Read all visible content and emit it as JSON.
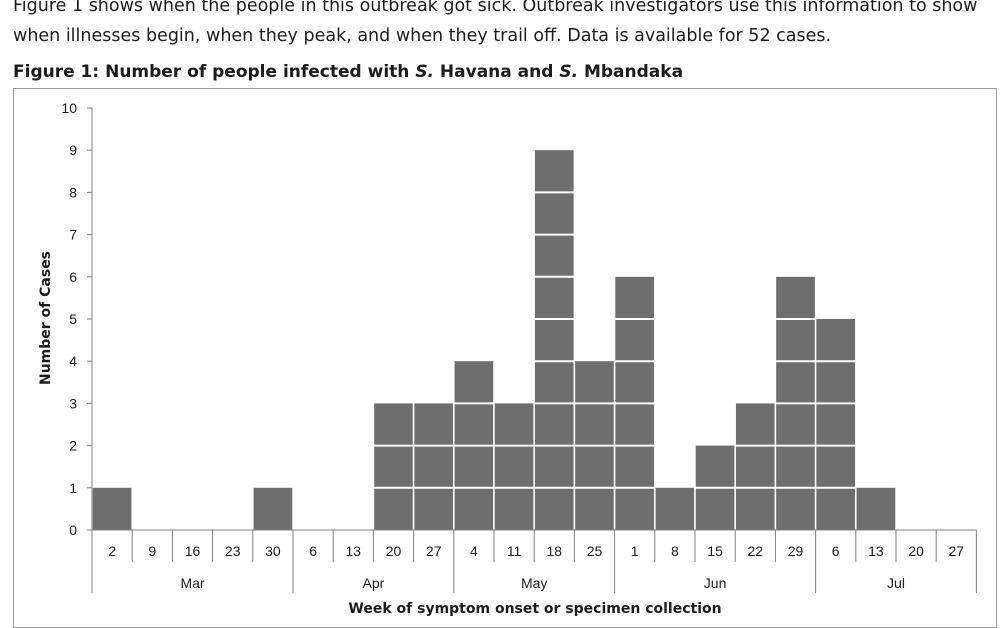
{
  "intro_text": "Figure 1 shows when the people in this outbreak got sick. Outbreak investigators use this information to show when illnesses begin, when they peak, and when they trail off. Data is available for 52 cases.",
  "figure_title": {
    "prefix": "Figure 1: Number of people infected with ",
    "species1": "S.",
    "name1": " Havana and ",
    "species2": "S.",
    "name2": " Mbandaka"
  },
  "colors": {
    "bar": "#6e6e6e",
    "bar_divider": "#ffffff",
    "axis": "#7f7f7f"
  },
  "chart_data": {
    "type": "bar",
    "title": "Figure 1: Number of people infected with S. Havana and S. Mbandaka",
    "xlabel": "Week of symptom onset or specimen collection",
    "ylabel": "Number of Cases",
    "ylim": [
      0,
      10
    ],
    "yticks": [
      "0",
      "1",
      "2",
      "3",
      "4",
      "5",
      "6",
      "7",
      "8",
      "9",
      "10"
    ],
    "categories": [
      "2",
      "9",
      "16",
      "23",
      "30",
      "6",
      "13",
      "20",
      "27",
      "4",
      "11",
      "18",
      "25",
      "1",
      "8",
      "15",
      "22",
      "29",
      "6",
      "13",
      "20",
      "27"
    ],
    "values": [
      1,
      0,
      0,
      0,
      1,
      0,
      0,
      3,
      3,
      4,
      3,
      9,
      4,
      6,
      1,
      2,
      3,
      6,
      5,
      1,
      0,
      0
    ],
    "month_groups": [
      {
        "label": "Mar",
        "start": 0,
        "end": 4
      },
      {
        "label": "Apr",
        "start": 5,
        "end": 8
      },
      {
        "label": "May",
        "start": 9,
        "end": 12
      },
      {
        "label": "Jun",
        "start": 13,
        "end": 17
      },
      {
        "label": "Jul",
        "start": 18,
        "end": 21
      }
    ],
    "grid": false,
    "legend": "none"
  }
}
